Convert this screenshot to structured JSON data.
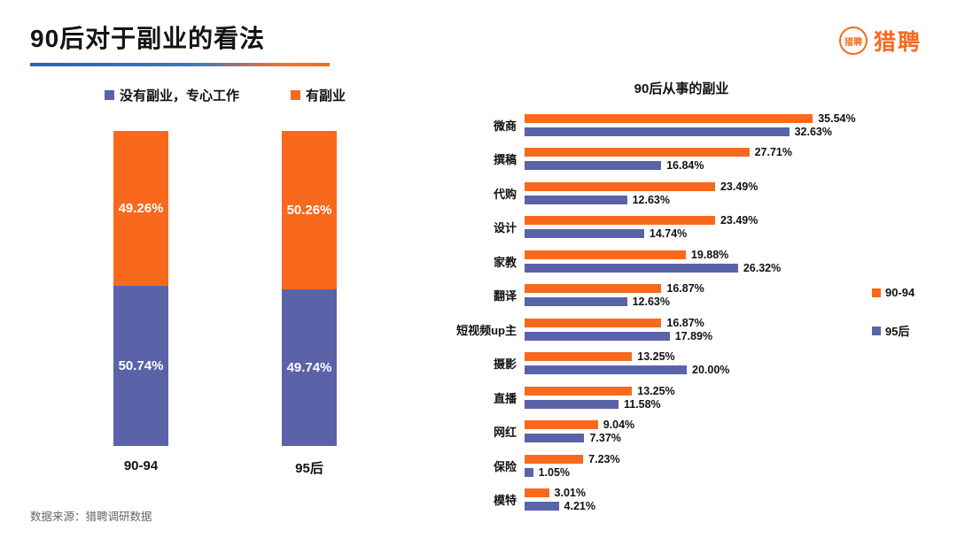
{
  "header": {
    "title": "90后对于副业的看法",
    "logo_text": "猎聘"
  },
  "footer": {
    "source": "数据来源：猎聘调研数据"
  },
  "colors": {
    "orange": "#f8691d",
    "blue": "#5a63a8"
  },
  "chart_data": [
    {
      "type": "bar",
      "subtype": "stacked-vertical",
      "title": "",
      "categories": [
        "90-94",
        "95后"
      ],
      "series": [
        {
          "name": "没有副业，专心工作",
          "color": "#5a63a8",
          "values": [
            50.74,
            49.74
          ]
        },
        {
          "name": "有副业",
          "color": "#f8691d",
          "values": [
            49.26,
            50.26
          ]
        }
      ],
      "value_format": "percent",
      "legend_position": "top",
      "ylim": [
        0,
        100
      ]
    },
    {
      "type": "bar",
      "subtype": "grouped-horizontal",
      "title": "90后从事的副业",
      "categories": [
        "微商",
        "撰稿",
        "代购",
        "设计",
        "家教",
        "翻译",
        "短视频up主",
        "摄影",
        "直播",
        "网红",
        "保险",
        "模特"
      ],
      "series": [
        {
          "name": "90-94",
          "color": "#f8691d",
          "values": [
            35.54,
            27.71,
            23.49,
            23.49,
            19.88,
            16.87,
            16.87,
            13.25,
            13.25,
            9.04,
            7.23,
            3.01
          ]
        },
        {
          "name": "95后",
          "color": "#5a63a8",
          "values": [
            32.63,
            16.84,
            12.63,
            14.74,
            26.32,
            12.63,
            17.89,
            20.0,
            11.58,
            7.37,
            1.05,
            4.21
          ]
        }
      ],
      "value_format": "percent",
      "legend_position": "right",
      "xlim": [
        0,
        40
      ],
      "grid": false
    }
  ]
}
